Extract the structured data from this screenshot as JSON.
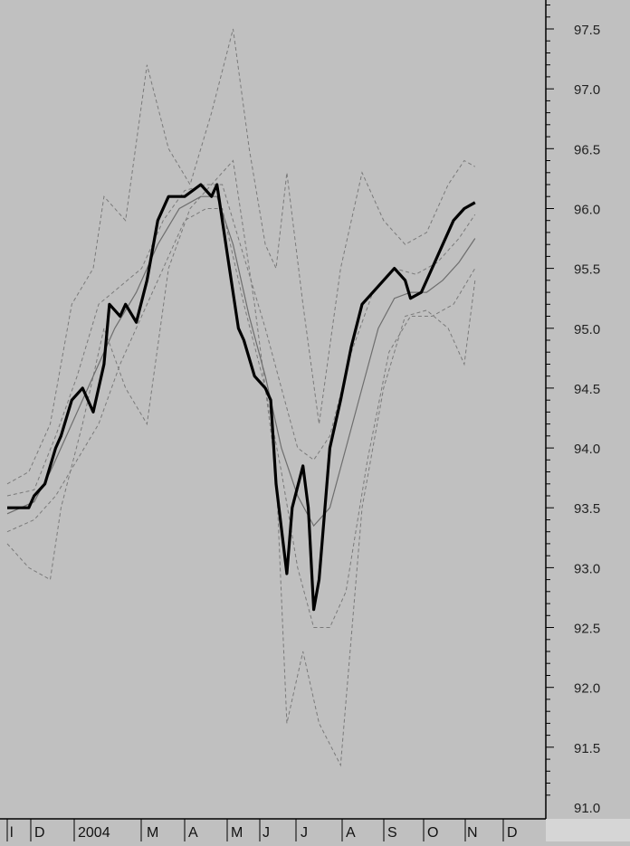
{
  "chart_data": {
    "type": "line",
    "title": "",
    "xlabel": "",
    "ylabel": "",
    "ylim": [
      90.9,
      97.7
    ],
    "grid": false,
    "y_axis_side": "right",
    "y_ticks": [
      "97.5",
      "97.0",
      "96.5",
      "96.0",
      "95.5",
      "95.0",
      "94.5",
      "94.0",
      "93.5",
      "93.0",
      "92.5",
      "92.0",
      "91.5",
      "91.0"
    ],
    "x_tick_labels": [
      "l",
      "D",
      "2004",
      "M",
      "A",
      "M",
      "J",
      "J",
      "A",
      "S",
      "O",
      "N",
      "D"
    ],
    "colors": {
      "background": "#c0c0c0",
      "price": "#000000",
      "moving_average": "#6e6e6e",
      "bands": "#7a7a7a"
    },
    "series": [
      {
        "role": "price",
        "style": "thick-solid",
        "points": [
          [
            0,
            93.5
          ],
          [
            0.04,
            93.5
          ],
          [
            0.05,
            93.6
          ],
          [
            0.07,
            93.7
          ],
          [
            0.09,
            94.0
          ],
          [
            0.1,
            94.1
          ],
          [
            0.12,
            94.4
          ],
          [
            0.14,
            94.5
          ],
          [
            0.16,
            94.3
          ],
          [
            0.18,
            94.7
          ],
          [
            0.19,
            95.2
          ],
          [
            0.21,
            95.1
          ],
          [
            0.22,
            95.2
          ],
          [
            0.24,
            95.05
          ],
          [
            0.26,
            95.4
          ],
          [
            0.28,
            95.9
          ],
          [
            0.3,
            96.1
          ],
          [
            0.33,
            96.1
          ],
          [
            0.36,
            96.2
          ],
          [
            0.38,
            96.1
          ],
          [
            0.39,
            96.2
          ],
          [
            0.41,
            95.6
          ],
          [
            0.43,
            95.0
          ],
          [
            0.44,
            94.9
          ],
          [
            0.46,
            94.6
          ],
          [
            0.48,
            94.5
          ],
          [
            0.49,
            94.4
          ],
          [
            0.5,
            93.7
          ],
          [
            0.52,
            92.95
          ],
          [
            0.53,
            93.5
          ],
          [
            0.55,
            93.85
          ],
          [
            0.56,
            93.5
          ],
          [
            0.57,
            92.65
          ],
          [
            0.58,
            92.9
          ],
          [
            0.6,
            94.0
          ],
          [
            0.62,
            94.4
          ],
          [
            0.64,
            94.85
          ],
          [
            0.66,
            95.2
          ],
          [
            0.68,
            95.3
          ],
          [
            0.7,
            95.4
          ],
          [
            0.72,
            95.5
          ],
          [
            0.74,
            95.4
          ],
          [
            0.75,
            95.25
          ],
          [
            0.77,
            95.3
          ],
          [
            0.79,
            95.5
          ],
          [
            0.81,
            95.7
          ],
          [
            0.83,
            95.9
          ],
          [
            0.85,
            96.0
          ],
          [
            0.87,
            96.05
          ]
        ]
      },
      {
        "role": "moving_average",
        "style": "thin-solid",
        "points": [
          [
            0,
            93.45
          ],
          [
            0.05,
            93.55
          ],
          [
            0.08,
            93.8
          ],
          [
            0.12,
            94.2
          ],
          [
            0.16,
            94.6
          ],
          [
            0.2,
            95.0
          ],
          [
            0.24,
            95.3
          ],
          [
            0.28,
            95.7
          ],
          [
            0.32,
            96.0
          ],
          [
            0.36,
            96.1
          ],
          [
            0.39,
            96.1
          ],
          [
            0.42,
            95.7
          ],
          [
            0.45,
            95.1
          ],
          [
            0.48,
            94.6
          ],
          [
            0.51,
            94.0
          ],
          [
            0.54,
            93.6
          ],
          [
            0.57,
            93.35
          ],
          [
            0.6,
            93.5
          ],
          [
            0.63,
            94.0
          ],
          [
            0.66,
            94.5
          ],
          [
            0.69,
            95.0
          ],
          [
            0.72,
            95.25
          ],
          [
            0.75,
            95.3
          ],
          [
            0.78,
            95.3
          ],
          [
            0.81,
            95.4
          ],
          [
            0.84,
            95.55
          ],
          [
            0.87,
            95.75
          ]
        ]
      },
      {
        "role": "band",
        "style": "dashed",
        "points": [
          [
            0,
            93.7
          ],
          [
            0.04,
            93.8
          ],
          [
            0.08,
            94.2
          ],
          [
            0.12,
            95.2
          ],
          [
            0.16,
            95.5
          ],
          [
            0.18,
            96.1
          ],
          [
            0.22,
            95.9
          ],
          [
            0.26,
            97.2
          ],
          [
            0.3,
            96.5
          ],
          [
            0.34,
            96.2
          ],
          [
            0.38,
            96.8
          ],
          [
            0.42,
            97.5
          ],
          [
            0.45,
            96.5
          ],
          [
            0.48,
            95.7
          ],
          [
            0.5,
            95.5
          ],
          [
            0.52,
            96.3
          ],
          [
            0.55,
            95.2
          ],
          [
            0.58,
            94.2
          ],
          [
            0.62,
            95.5
          ],
          [
            0.66,
            96.3
          ],
          [
            0.7,
            95.9
          ],
          [
            0.74,
            95.7
          ],
          [
            0.78,
            95.8
          ],
          [
            0.82,
            96.2
          ],
          [
            0.85,
            96.4
          ],
          [
            0.87,
            96.35
          ]
        ]
      },
      {
        "role": "band",
        "style": "dashed",
        "points": [
          [
            0,
            93.2
          ],
          [
            0.04,
            93.0
          ],
          [
            0.08,
            92.9
          ],
          [
            0.1,
            93.5
          ],
          [
            0.14,
            94.2
          ],
          [
            0.18,
            95.0
          ],
          [
            0.22,
            94.5
          ],
          [
            0.26,
            94.2
          ],
          [
            0.3,
            95.5
          ],
          [
            0.34,
            96.0
          ],
          [
            0.38,
            96.2
          ],
          [
            0.42,
            96.4
          ],
          [
            0.46,
            95.2
          ],
          [
            0.5,
            93.8
          ],
          [
            0.52,
            91.7
          ],
          [
            0.55,
            92.3
          ],
          [
            0.58,
            91.7
          ],
          [
            0.62,
            91.35
          ],
          [
            0.66,
            93.5
          ],
          [
            0.7,
            94.5
          ],
          [
            0.74,
            95.1
          ],
          [
            0.78,
            95.15
          ],
          [
            0.82,
            95.0
          ],
          [
            0.85,
            94.7
          ],
          [
            0.87,
            95.4
          ]
        ]
      },
      {
        "role": "band",
        "style": "dashed",
        "points": [
          [
            0,
            93.6
          ],
          [
            0.05,
            93.65
          ],
          [
            0.09,
            94.1
          ],
          [
            0.13,
            94.6
          ],
          [
            0.17,
            95.2
          ],
          [
            0.21,
            95.35
          ],
          [
            0.25,
            95.5
          ],
          [
            0.29,
            95.9
          ],
          [
            0.33,
            96.15
          ],
          [
            0.37,
            96.2
          ],
          [
            0.4,
            96.2
          ],
          [
            0.44,
            95.6
          ],
          [
            0.48,
            95.0
          ],
          [
            0.51,
            94.5
          ],
          [
            0.54,
            94.0
          ],
          [
            0.57,
            93.9
          ],
          [
            0.6,
            94.1
          ],
          [
            0.64,
            94.8
          ],
          [
            0.68,
            95.3
          ],
          [
            0.72,
            95.5
          ],
          [
            0.76,
            95.45
          ],
          [
            0.8,
            95.55
          ],
          [
            0.84,
            95.75
          ],
          [
            0.87,
            95.95
          ]
        ]
      },
      {
        "role": "band",
        "style": "dashed",
        "points": [
          [
            0,
            93.3
          ],
          [
            0.05,
            93.4
          ],
          [
            0.09,
            93.6
          ],
          [
            0.13,
            93.9
          ],
          [
            0.17,
            94.2
          ],
          [
            0.21,
            94.7
          ],
          [
            0.25,
            95.1
          ],
          [
            0.29,
            95.5
          ],
          [
            0.33,
            95.9
          ],
          [
            0.37,
            96.0
          ],
          [
            0.4,
            96.0
          ],
          [
            0.44,
            95.2
          ],
          [
            0.48,
            94.5
          ],
          [
            0.51,
            93.8
          ],
          [
            0.54,
            93.0
          ],
          [
            0.57,
            92.5
          ],
          [
            0.6,
            92.5
          ],
          [
            0.63,
            92.8
          ],
          [
            0.67,
            93.9
          ],
          [
            0.71,
            94.8
          ],
          [
            0.75,
            95.1
          ],
          [
            0.79,
            95.1
          ],
          [
            0.83,
            95.2
          ],
          [
            0.87,
            95.5
          ]
        ]
      }
    ]
  }
}
